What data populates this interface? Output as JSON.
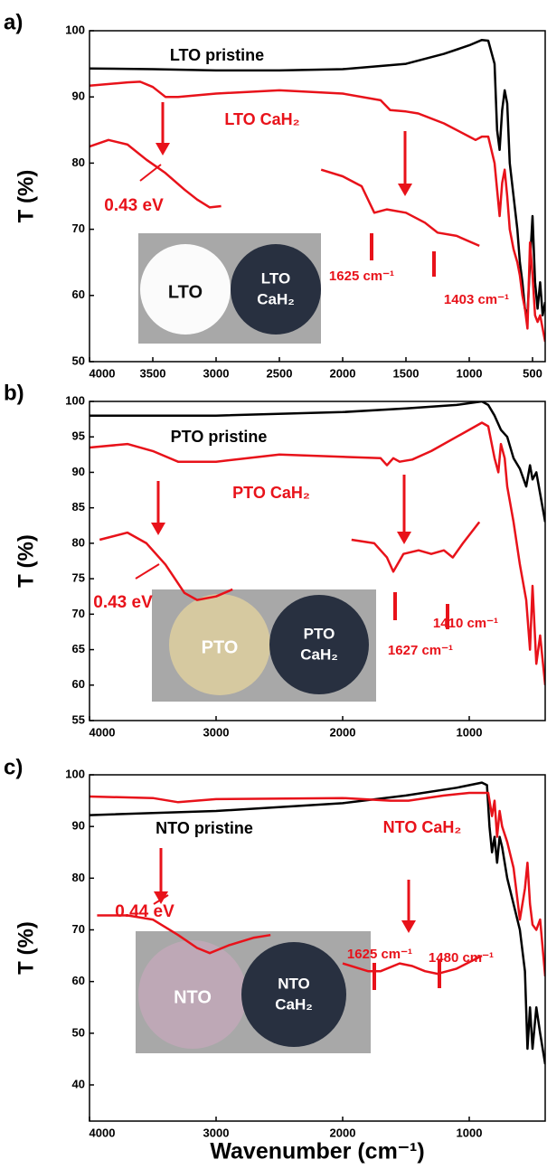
{
  "chart_data": [
    {
      "type": "line",
      "label": "a)",
      "ylabel": "T (%)",
      "xlim": [
        4000,
        400
      ],
      "ylim": [
        50,
        100
      ],
      "xticks": [
        4000,
        3500,
        3000,
        2500,
        2000,
        1500,
        1000,
        500
      ],
      "yticks": [
        50,
        60,
        70,
        80,
        90,
        100
      ],
      "series": [
        {
          "name": "LTO pristine",
          "color": "#000000",
          "x": [
            4000,
            3500,
            3000,
            2500,
            2000,
            1500,
            1200,
            1000,
            900,
            850,
            800,
            780,
            760,
            740,
            720,
            700,
            680,
            650,
            620,
            600,
            580,
            560,
            540,
            520,
            500,
            480,
            460,
            440,
            420,
            400
          ],
          "values": [
            94.3,
            94.2,
            94,
            94,
            94.2,
            95,
            96.5,
            97.8,
            98.6,
            98.5,
            95,
            85,
            82,
            88,
            91,
            89,
            80,
            75,
            70,
            65,
            62,
            58,
            57,
            65,
            72,
            62,
            58,
            62,
            57,
            59
          ]
        },
        {
          "name": "LTO CaH₂",
          "color": "#e8121a",
          "x": [
            4000,
            3700,
            3600,
            3500,
            3400,
            3300,
            3000,
            2500,
            2000,
            1700,
            1625,
            1500,
            1403,
            1200,
            1000,
            950,
            900,
            850,
            800,
            780,
            760,
            740,
            720,
            700,
            680,
            650,
            620,
            600,
            580,
            560,
            540,
            520,
            500,
            480,
            460,
            440,
            420,
            400
          ],
          "values": [
            91.7,
            92.2,
            92.3,
            91.5,
            90,
            90,
            90.5,
            91,
            90.5,
            89.5,
            88,
            87.8,
            87.5,
            86,
            84,
            83.5,
            84,
            84,
            80,
            76,
            72,
            77,
            79,
            75,
            70,
            67,
            65,
            63,
            60,
            58,
            55,
            68,
            63,
            57,
            56,
            57,
            55,
            53
          ]
        },
        {
          "color": "#e8121a",
          "x": [
            4000,
            3850,
            3700,
            3550,
            3400,
            3250,
            3150,
            3050,
            2960
          ],
          "values": [
            82.5,
            83.5,
            82.8,
            80.5,
            78.5,
            76,
            74.5,
            73.3,
            73.5
          ]
        },
        {
          "color": "#e8121a",
          "x": [
            2170,
            2000,
            1850,
            1750,
            1650,
            1500,
            1350,
            1250,
            1100,
            920
          ],
          "values": [
            79,
            78,
            76.5,
            72.5,
            73,
            72.5,
            71,
            69.5,
            69,
            67.5
          ]
        }
      ],
      "annotations": [
        "0.43 eV",
        "1625 cm⁻¹",
        "1403 cm⁻¹"
      ],
      "photo": {
        "left": [
          "LTO"
        ],
        "right": [
          "LTO",
          "CaH₂"
        ]
      }
    },
    {
      "type": "line",
      "label": "b)",
      "ylabel": "T (%)",
      "xlim": [
        4000,
        400
      ],
      "ylim": [
        55,
        100
      ],
      "xticks": [
        4000,
        3000,
        2000,
        1000
      ],
      "yticks": [
        55,
        60,
        65,
        70,
        75,
        80,
        85,
        90,
        95,
        100
      ],
      "series": [
        {
          "name": "PTO pristine",
          "color": "#000000",
          "x": [
            4000,
            3000,
            2000,
            1500,
            1100,
            900,
            850,
            800,
            750,
            700,
            650,
            600,
            550,
            520,
            500,
            470,
            440,
            400
          ],
          "values": [
            98,
            98,
            98.5,
            99,
            99.5,
            100,
            99.5,
            98,
            96,
            95,
            92,
            90.5,
            88,
            91,
            89,
            90,
            87,
            83
          ]
        },
        {
          "name": "PTO CaH₂",
          "color": "#e8121a",
          "x": [
            4000,
            3700,
            3500,
            3300,
            3000,
            2500,
            1700,
            1650,
            1600,
            1550,
            1450,
            1300,
            1100,
            900,
            850,
            800,
            770,
            750,
            720,
            700,
            650,
            600,
            550,
            520,
            500,
            470,
            440,
            400
          ],
          "values": [
            93.5,
            94,
            93,
            91.5,
            91.5,
            92.5,
            92,
            91,
            92,
            91.5,
            91.8,
            93,
            95,
            97,
            96.5,
            92,
            90,
            94,
            92,
            88,
            83,
            77,
            72,
            65,
            74,
            63,
            67,
            60
          ]
        },
        {
          "color": "#e8121a",
          "x": [
            3920,
            3700,
            3550,
            3400,
            3250,
            3150,
            3000,
            2870
          ],
          "values": [
            80.5,
            81.5,
            80,
            77,
            73,
            72,
            72.5,
            73.5
          ]
        },
        {
          "color": "#e8121a",
          "x": [
            1930,
            1750,
            1650,
            1600,
            1520,
            1400,
            1300,
            1200,
            1130,
            1050,
            920
          ],
          "values": [
            80.5,
            80,
            78,
            76,
            78.5,
            79,
            78.5,
            79,
            78,
            80,
            83
          ]
        }
      ],
      "annotations": [
        "0.43 eV",
        "1627 cm⁻¹",
        "1410 cm⁻¹"
      ],
      "photo": {
        "left": [
          "PTO"
        ],
        "right": [
          "PTO",
          "CaH₂"
        ]
      }
    },
    {
      "type": "line",
      "label": "c)",
      "ylabel": "T (%)",
      "xlabel": "Wavenumber (cm⁻¹)",
      "xlim": [
        4000,
        400
      ],
      "ylim": [
        33,
        100
      ],
      "xticks": [
        4000,
        3000,
        2000,
        1000
      ],
      "yticks": [
        40,
        50,
        60,
        70,
        80,
        90,
        100
      ],
      "series": [
        {
          "name": "NTO pristine",
          "color": "#000000",
          "x": [
            4000,
            3000,
            2000,
            1500,
            1100,
            900,
            860,
            840,
            820,
            800,
            780,
            760,
            740,
            700,
            650,
            600,
            560,
            540,
            520,
            500,
            470,
            440,
            400
          ],
          "values": [
            92.2,
            93,
            94.5,
            96,
            97.5,
            98.5,
            98,
            90,
            85,
            88,
            83,
            88,
            86,
            80,
            75,
            70,
            62,
            47,
            55,
            47,
            55,
            50,
            44
          ]
        },
        {
          "name": "NTO CaH₂",
          "color": "#e8121a",
          "x": [
            4000,
            3500,
            3300,
            3000,
            2000,
            1625,
            1480,
            1200,
            1000,
            850,
            820,
            800,
            780,
            760,
            740,
            700,
            650,
            600,
            560,
            540,
            520,
            500,
            470,
            440,
            400
          ],
          "values": [
            95.8,
            95.5,
            94.7,
            95.3,
            95.5,
            95,
            95,
            96,
            96.5,
            96.5,
            92,
            95,
            88,
            93,
            90,
            87,
            82,
            72,
            78,
            83,
            75,
            71,
            70,
            72,
            61
          ]
        },
        {
          "color": "#e8121a",
          "x": [
            3940,
            3700,
            3500,
            3300,
            3150,
            3050,
            2900,
            2700,
            2570
          ],
          "values": [
            72.8,
            72.8,
            72,
            69,
            66.5,
            65.5,
            67,
            68.5,
            69
          ]
        },
        {
          "color": "#e8121a",
          "x": [
            2000,
            1800,
            1700,
            1550,
            1450,
            1350,
            1250,
            1100,
            900
          ],
          "values": [
            63.5,
            62,
            62,
            63.5,
            63,
            62,
            61.5,
            62.5,
            65
          ]
        }
      ],
      "annotations": [
        "0.44 eV",
        "1625 cm⁻¹",
        "1480 cm⁻¹"
      ],
      "photo": {
        "left": [
          "NTO"
        ],
        "right": [
          "NTO",
          "CaH₂"
        ]
      }
    }
  ]
}
